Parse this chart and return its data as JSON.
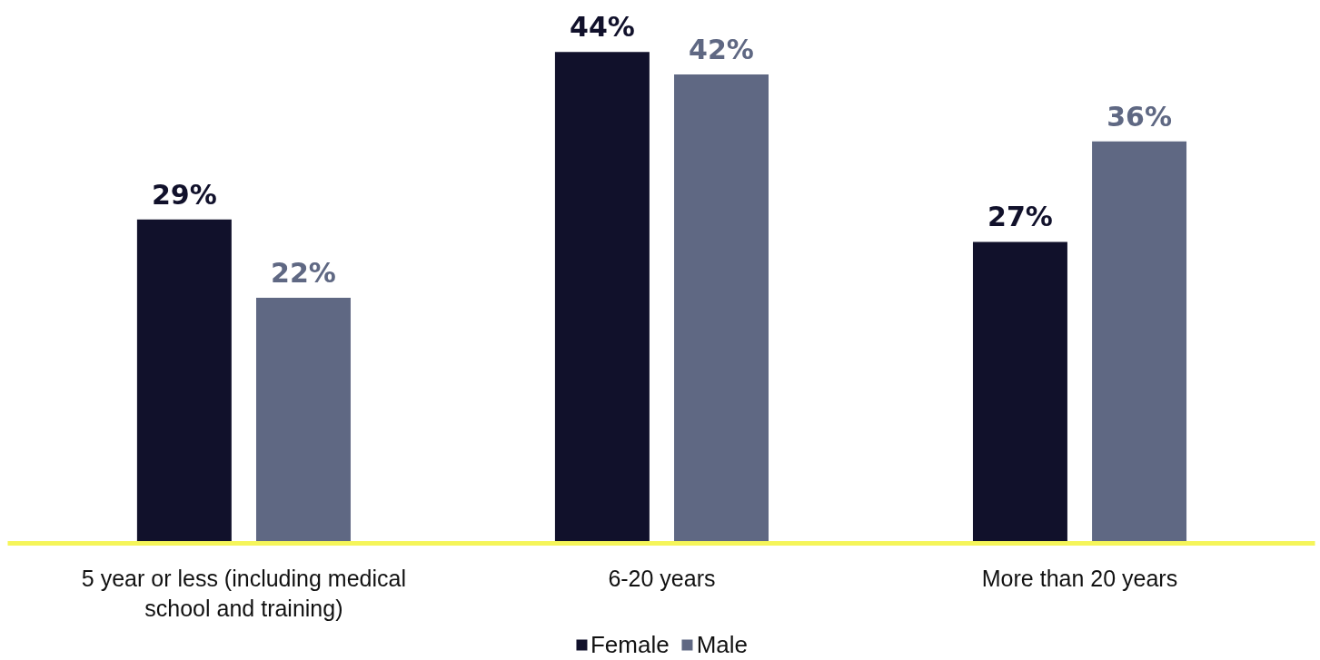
{
  "chart_data": {
    "type": "bar",
    "categories": [
      "5 year or less (including medical school and training)",
      "6-20 years",
      "More than 20 years"
    ],
    "series": [
      {
        "name": "Female",
        "color": "#11112b",
        "values": [
          29,
          44,
          27
        ],
        "value_labels": [
          "29%",
          "44%",
          "27%"
        ]
      },
      {
        "name": "Male",
        "color": "#5f6883",
        "values": [
          22,
          42,
          36
        ],
        "value_labels": [
          "22%",
          "42%",
          "36%"
        ]
      }
    ],
    "legend": "bottom",
    "grid": false
  }
}
